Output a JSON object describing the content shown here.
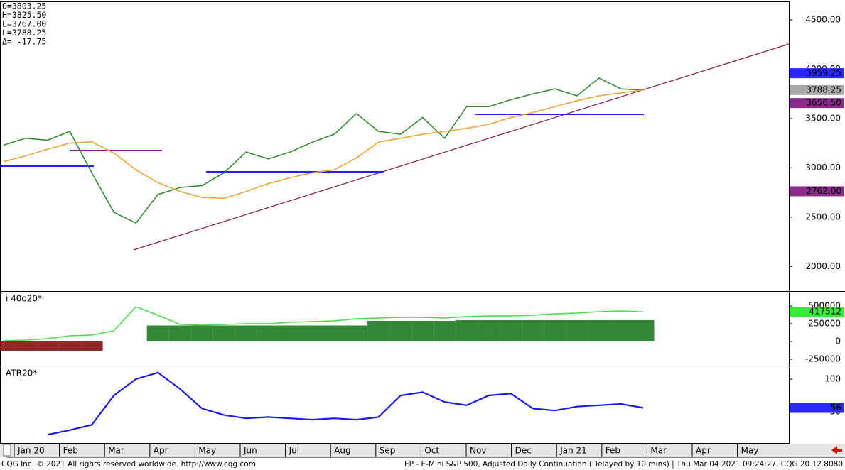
{
  "chart_data": [
    {
      "type": "line",
      "info": [
        "O=3803.25",
        "H=3825.50",
        "L=3767.00",
        "L=3788.25",
        "Δ= -17.75"
      ],
      "ylim": [
        1750,
        4680
      ],
      "yticks": [
        {
          "value": 2000,
          "label": "2000.00"
        },
        {
          "value": 2500,
          "label": "2500.00"
        },
        {
          "value": 3000,
          "label": "3000.00"
        },
        {
          "value": 3500,
          "label": "3500.00"
        },
        {
          "value": 4000,
          "label": "4000.00"
        },
        {
          "value": 4500,
          "label": "4500.00"
        }
      ],
      "series": [
        {
          "color": "#2a8a2a",
          "values": [
            3230,
            3300,
            3280,
            3370,
            2950,
            2550,
            2440,
            2730,
            2800,
            2820,
            2950,
            3160,
            3090,
            3160,
            3260,
            3340,
            3550,
            3370,
            3340,
            3510,
            3300,
            3620,
            3620,
            3690,
            3750,
            3800,
            3730,
            3910,
            3800,
            3788.25
          ]
        },
        {
          "color": "#f0a030",
          "values": [
            3064,
            3120,
            3190,
            3250,
            3264,
            3150,
            2980,
            2850,
            2760,
            2700,
            2690,
            2760,
            2840,
            2900,
            2950,
            2980,
            3100,
            3260,
            3300,
            3340,
            3370,
            3400,
            3440,
            3510,
            3560,
            3620,
            3680,
            3730,
            3760,
            3790
          ]
        }
      ],
      "tags": [
        {
          "value": 3959.25,
          "color": "#2828ff",
          "text_color": "#ffffff"
        },
        {
          "value": 3788.25,
          "color": "#a8a8a8",
          "text_color": "#000000"
        },
        {
          "value": {
            "value": 3656.5,
            "label": "3656.50"
          },
          "color": "#8a2a8a",
          "text_color": "#ffffff"
        },
        {
          "value": {
            "value": 2762,
            "label": "2762.00"
          },
          "color": "#8a2a8a",
          "text_color": "#ffffff"
        }
      ]
    },
    {
      "type": "combo",
      "title": "i 40o20*",
      "ylim": [
        -340000,
        690000
      ],
      "yticks": [
        -250000,
        0,
        250000,
        500000
      ],
      "series": [
        {
          "type": "bar",
          "color": "#1e7a1e",
          "negative_color": "#8b1010",
          "values": [
            -130000,
            -130000,
            -130000,
            -130000,
            -130000,
            null,
            null,
            225000,
            225000,
            225000,
            225000,
            225000,
            225000,
            225000,
            225000,
            225000,
            225000,
            290000,
            290000,
            290000,
            290000,
            300000,
            300000,
            300000,
            300000,
            300000,
            300000,
            300000,
            300000,
            300000
          ]
        },
        {
          "type": "line",
          "color": "#44dd44",
          "values": [
            10000,
            20000,
            40000,
            80000,
            90000,
            150000,
            490000,
            370000,
            240000,
            230000,
            240000,
            250000,
            250000,
            270000,
            280000,
            290000,
            320000,
            330000,
            340000,
            340000,
            330000,
            350000,
            360000,
            360000,
            370000,
            390000,
            400000,
            420000,
            430000,
            417512
          ]
        }
      ],
      "tags": [
        {
          "value": 417512,
          "color": "#33ee33",
          "text_color": "#000000"
        }
      ]
    },
    {
      "type": "line",
      "title": "ATR20*",
      "ylim": [
        1.1,
        118.5
      ],
      "yticks": [
        50,
        100
      ],
      "series": [
        {
          "color": "#1a1aee",
          "values": [
            null,
            null,
            15,
            22,
            30,
            75,
            100,
            110,
            85,
            55,
            45,
            40,
            42,
            40,
            38,
            40,
            38,
            42,
            75,
            80,
            65,
            60,
            75,
            78,
            55,
            52,
            58,
            60,
            62,
            56
          ]
        }
      ],
      "tags": [
        {
          "value": 56,
          "color": "#2828ff",
          "text_color": "#ffffff"
        }
      ]
    }
  ],
  "x_axis": {
    "labels": [
      "Jan 20",
      "Feb",
      "Mar",
      "Apr",
      "May",
      "Jun",
      "Jul",
      "Aug",
      "Sep",
      "Oct",
      "Nov",
      "Dec",
      "Jan 21",
      "Feb",
      "Mar",
      "Apr",
      "May"
    ]
  },
  "footer": {
    "left": "CQG Inc. © 2021 All rights reserved worldwide. http://www.cqg.com",
    "right": "EP - E-Mini S&P 500, Adjusted Daily Continuation (Delayed by 10 mins) | Thu Mar 04 2021 09:24:27, CQG 20.12.8080"
  }
}
